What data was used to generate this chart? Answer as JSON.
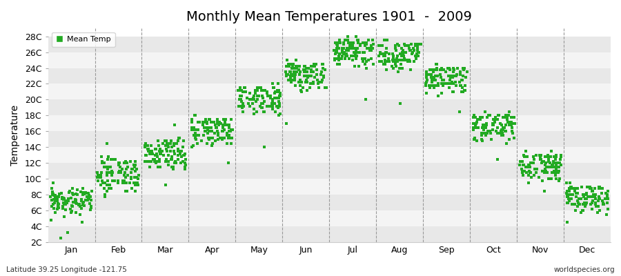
{
  "title": "Monthly Mean Temperatures 1901  -  2009",
  "ylabel": "Temperature",
  "subtitle": "Latitude 39.25 Longitude -121.75",
  "watermark": "worldspecies.org",
  "legend_label": "Mean Temp",
  "dot_color": "#22aa22",
  "dot_marker": "s",
  "dot_size": 5,
  "background_color": "#ffffff",
  "plot_bg_color": "#f0f0f0",
  "band_colors": [
    "#e8e8e8",
    "#f4f4f4"
  ],
  "ytick_labels": [
    "2C",
    "4C",
    "6C",
    "8C",
    "10C",
    "12C",
    "14C",
    "16C",
    "18C",
    "20C",
    "22C",
    "24C",
    "26C",
    "28C"
  ],
  "ytick_values": [
    2,
    4,
    6,
    8,
    10,
    12,
    14,
    16,
    18,
    20,
    22,
    24,
    26,
    28
  ],
  "ylim": [
    2,
    28
  ],
  "months": [
    "Jan",
    "Feb",
    "Mar",
    "Apr",
    "May",
    "Jun",
    "Jul",
    "Aug",
    "Sep",
    "Oct",
    "Nov",
    "Dec"
  ],
  "month_centers": [
    0.5,
    1.5,
    2.5,
    3.5,
    4.5,
    5.5,
    6.5,
    7.5,
    8.5,
    9.5,
    10.5,
    11.5
  ],
  "month_boundaries": [
    1,
    2,
    3,
    4,
    5,
    6,
    7,
    8,
    9,
    10,
    11
  ],
  "xlim": [
    0,
    12
  ],
  "mean_temps_by_month": {
    "0": [
      7.1,
      6.1,
      6.3,
      5.8,
      7.5,
      7.2,
      6.8,
      7.8,
      7.0,
      5.5,
      4.8,
      6.5,
      7.3,
      8.1,
      7.8,
      6.9,
      7.6,
      8.2,
      7.5,
      6.3,
      7.0,
      7.8,
      6.5,
      7.2,
      8.5,
      7.1,
      6.8,
      5.9,
      7.4,
      8.0,
      7.3,
      6.2,
      9.5,
      7.8,
      6.4,
      8.1,
      7.5,
      7.0,
      6.8,
      8.3,
      7.2,
      5.8,
      6.5,
      7.9,
      8.2,
      6.7,
      7.4,
      8.8,
      7.1,
      6.5,
      7.3,
      8.0,
      6.9,
      7.5,
      8.1,
      7.6,
      6.3,
      7.8,
      8.4,
      5.2,
      7.0,
      7.7,
      8.3,
      6.8,
      7.5,
      8.0,
      7.2,
      6.6,
      7.9,
      8.5,
      7.1,
      6.4,
      7.8,
      8.3,
      6.5,
      7.2,
      8.8,
      7.4,
      6.1,
      7.6,
      8.2,
      6.9,
      7.5,
      8.1,
      7.0,
      6.8,
      7.4,
      8.6,
      7.3,
      6.2,
      7.9,
      8.4,
      6.7,
      7.1,
      8.3,
      7.6,
      6.5,
      7.2,
      8.8,
      5.8,
      7.3,
      8.0,
      7.5,
      6.6,
      8.2,
      2.5,
      3.2,
      4.5
    ],
    "1": [
      8.5,
      10.5,
      9.2,
      8.8,
      11.2,
      10.0,
      9.5,
      11.8,
      10.2,
      8.0,
      8.5,
      11.5,
      10.8,
      12.2,
      11.5,
      9.8,
      10.5,
      12.5,
      11.2,
      9.5,
      10.2,
      11.8,
      9.8,
      10.8,
      12.2,
      10.5,
      9.5,
      8.8,
      11.0,
      12.0,
      10.8,
      9.2,
      10.0,
      11.5,
      9.5,
      11.5,
      10.8,
      10.2,
      9.8,
      12.0,
      10.5,
      8.8,
      9.5,
      11.2,
      12.0,
      9.8,
      10.5,
      12.5,
      10.2,
      9.5,
      10.8,
      11.5,
      9.8,
      10.5,
      12.0,
      11.0,
      9.2,
      11.2,
      12.5,
      7.8,
      10.2,
      11.2,
      12.2,
      9.8,
      10.8,
      11.5,
      10.5,
      9.5,
      11.2,
      12.5,
      10.2,
      9.5,
      11.0,
      12.0,
      9.5,
      10.2,
      12.8,
      10.8,
      8.8,
      11.0,
      12.0,
      9.8,
      10.8,
      11.8,
      10.2,
      9.8,
      10.8,
      12.5,
      10.5,
      9.2,
      11.5,
      12.2,
      9.8,
      10.2,
      12.0,
      11.0,
      9.5,
      10.5,
      12.8,
      8.5,
      10.8,
      11.5,
      10.8,
      9.5,
      12.0,
      14.5,
      8.5,
      9.2
    ],
    "2": [
      11.5,
      12.0,
      12.5,
      13.2,
      12.8,
      11.8,
      13.5,
      12.2,
      13.8,
      12.5,
      11.2,
      13.2,
      12.8,
      14.5,
      13.5,
      12.2,
      13.0,
      14.8,
      13.2,
      12.0,
      13.0,
      14.2,
      12.5,
      13.5,
      14.8,
      13.0,
      12.2,
      11.5,
      14.0,
      14.8,
      13.5,
      12.0,
      11.5,
      13.5,
      12.2,
      13.8,
      13.2,
      12.8,
      12.2,
      14.2,
      13.0,
      11.5,
      12.2,
      13.8,
      14.5,
      12.5,
      13.2,
      14.8,
      12.8,
      12.2,
      13.5,
      14.2,
      12.5,
      13.2,
      14.8,
      13.8,
      12.0,
      14.0,
      14.8,
      9.2,
      13.0,
      14.0,
      14.5,
      12.5,
      13.5,
      14.2,
      13.2,
      12.2,
      14.0,
      14.5,
      13.0,
      12.2,
      13.8,
      14.5,
      12.2,
      13.0,
      15.2,
      13.5,
      11.5,
      13.8,
      14.5,
      12.5,
      13.5,
      14.2,
      13.0,
      12.5,
      13.5,
      14.8,
      13.2,
      11.8,
      14.2,
      14.8,
      12.5,
      13.0,
      14.5,
      13.8,
      12.2,
      13.2,
      15.2,
      11.2,
      13.5,
      14.2,
      13.5,
      12.2,
      14.5,
      16.8,
      11.5,
      12.0
    ],
    "3": [
      14.5,
      15.0,
      15.8,
      16.5,
      16.0,
      14.8,
      16.5,
      15.2,
      16.5,
      15.5,
      14.2,
      16.2,
      15.8,
      17.0,
      16.5,
      15.2,
      16.0,
      17.2,
      16.2,
      15.0,
      15.8,
      17.0,
      15.5,
      16.5,
      17.2,
      16.0,
      15.2,
      14.5,
      16.8,
      17.2,
      16.5,
      15.0,
      14.0,
      16.5,
      15.2,
      16.8,
      16.2,
      15.8,
      15.2,
      17.2,
      16.0,
      14.5,
      15.2,
      16.8,
      17.2,
      15.5,
      16.2,
      17.5,
      15.8,
      15.2,
      16.5,
      17.2,
      15.5,
      16.2,
      17.5,
      16.8,
      15.0,
      17.0,
      17.5,
      12.0,
      16.0,
      17.0,
      17.2,
      15.5,
      16.5,
      17.2,
      16.2,
      15.2,
      17.0,
      17.5,
      16.0,
      15.2,
      16.8,
      17.5,
      15.2,
      16.0,
      18.0,
      16.5,
      14.5,
      16.8,
      17.2,
      15.5,
      16.5,
      17.2,
      16.0,
      15.5,
      16.5,
      17.5,
      16.2,
      14.8,
      17.2,
      17.5,
      15.5,
      16.0,
      17.2,
      16.8,
      15.2,
      16.2,
      18.0,
      14.2,
      16.5,
      17.2,
      16.5,
      15.2,
      17.5,
      15.5,
      14.5,
      15.2
    ],
    "4": [
      18.5,
      19.0,
      19.8,
      20.5,
      20.0,
      18.8,
      20.5,
      19.2,
      20.5,
      19.5,
      18.2,
      20.2,
      19.8,
      21.0,
      20.5,
      19.2,
      20.0,
      21.2,
      20.2,
      19.0,
      19.8,
      21.0,
      19.5,
      20.5,
      21.2,
      20.0,
      19.2,
      18.5,
      21.0,
      21.2,
      20.5,
      19.0,
      18.0,
      20.5,
      19.2,
      20.8,
      20.2,
      19.8,
      19.2,
      21.2,
      20.0,
      18.5,
      19.2,
      20.8,
      21.2,
      19.5,
      20.2,
      21.5,
      19.8,
      19.2,
      20.5,
      21.2,
      19.5,
      20.2,
      21.5,
      20.8,
      19.0,
      21.0,
      21.5,
      14.0,
      20.0,
      21.0,
      21.2,
      19.5,
      20.5,
      21.2,
      20.2,
      19.2,
      21.0,
      21.5,
      20.0,
      19.2,
      20.8,
      21.5,
      19.2,
      20.0,
      22.0,
      20.5,
      18.5,
      20.8,
      21.2,
      19.5,
      20.5,
      21.2,
      20.0,
      19.5,
      20.5,
      21.5,
      20.2,
      18.8,
      21.2,
      21.5,
      19.5,
      20.0,
      21.2,
      20.8,
      19.2,
      20.2,
      22.0,
      18.2,
      20.5,
      21.2,
      20.5,
      19.2,
      21.5,
      19.5,
      18.5,
      19.2
    ],
    "5": [
      21.5,
      22.0,
      22.8,
      23.5,
      23.0,
      21.8,
      23.5,
      22.2,
      23.5,
      22.5,
      21.2,
      23.2,
      22.8,
      24.0,
      23.5,
      22.2,
      23.0,
      24.2,
      23.2,
      22.0,
      22.8,
      24.0,
      22.5,
      23.5,
      24.2,
      23.0,
      22.2,
      21.5,
      24.0,
      24.2,
      23.5,
      22.0,
      21.0,
      23.5,
      22.2,
      23.8,
      23.2,
      22.8,
      22.2,
      24.2,
      23.0,
      21.5,
      22.2,
      23.8,
      24.2,
      22.5,
      23.2,
      24.5,
      22.8,
      22.2,
      23.5,
      24.2,
      22.5,
      23.2,
      24.5,
      23.8,
      22.0,
      24.0,
      24.5,
      17.0,
      23.0,
      24.0,
      24.2,
      22.5,
      23.5,
      24.2,
      23.2,
      22.2,
      24.0,
      24.5,
      23.0,
      22.2,
      23.8,
      24.5,
      22.2,
      23.0,
      25.0,
      23.5,
      21.5,
      23.8,
      24.2,
      22.5,
      23.5,
      24.2,
      23.0,
      22.5,
      23.5,
      24.5,
      23.2,
      21.8,
      24.2,
      24.5,
      22.5,
      23.0,
      24.2,
      23.8,
      22.2,
      23.2,
      25.0,
      21.2,
      23.5,
      24.2,
      23.5,
      22.2,
      24.5,
      22.5,
      21.5,
      22.2
    ],
    "6": [
      24.5,
      25.0,
      25.8,
      26.5,
      26.0,
      24.8,
      26.5,
      25.2,
      26.5,
      25.5,
      24.2,
      26.2,
      25.8,
      27.0,
      26.5,
      25.2,
      26.0,
      27.2,
      26.2,
      25.0,
      25.8,
      27.0,
      25.5,
      26.5,
      27.2,
      26.0,
      25.2,
      24.5,
      27.0,
      27.2,
      26.5,
      25.0,
      24.0,
      26.5,
      25.2,
      26.8,
      26.2,
      25.8,
      25.2,
      27.2,
      26.0,
      24.5,
      25.2,
      26.8,
      27.2,
      25.5,
      26.2,
      27.5,
      25.8,
      25.2,
      26.5,
      27.2,
      25.5,
      26.2,
      27.5,
      26.8,
      25.0,
      27.0,
      27.5,
      20.0,
      26.0,
      27.0,
      27.2,
      25.5,
      26.5,
      27.2,
      26.2,
      25.2,
      27.0,
      27.5,
      26.0,
      25.2,
      26.8,
      27.5,
      25.2,
      26.0,
      28.0,
      26.5,
      24.5,
      26.8,
      27.2,
      25.5,
      26.5,
      27.2,
      26.0,
      25.5,
      26.5,
      27.5,
      26.2,
      24.8,
      27.2,
      27.5,
      25.5,
      26.0,
      27.2,
      26.8,
      25.2,
      26.2,
      28.0,
      24.2,
      26.5,
      27.2,
      26.5,
      25.2,
      27.5,
      25.5,
      24.5,
      25.2
    ],
    "7": [
      25.0,
      24.5,
      25.2,
      25.8,
      25.5,
      24.2,
      25.8,
      24.8,
      25.8,
      25.0,
      23.8,
      25.5,
      25.2,
      26.5,
      25.8,
      24.8,
      25.5,
      26.8,
      25.8,
      24.5,
      25.2,
      26.5,
      25.0,
      26.0,
      26.8,
      25.5,
      24.8,
      24.0,
      26.5,
      26.8,
      26.0,
      24.5,
      23.5,
      26.0,
      24.8,
      26.2,
      25.8,
      25.2,
      24.8,
      26.8,
      25.5,
      24.0,
      24.8,
      26.2,
      26.8,
      25.0,
      25.8,
      27.0,
      25.2,
      24.8,
      26.0,
      26.8,
      25.0,
      25.8,
      27.0,
      26.2,
      24.5,
      26.5,
      27.0,
      19.5,
      25.5,
      26.5,
      26.8,
      25.0,
      26.0,
      26.8,
      25.8,
      24.8,
      26.5,
      27.0,
      25.5,
      24.8,
      26.2,
      27.0,
      24.8,
      25.5,
      27.5,
      26.0,
      24.0,
      26.2,
      26.8,
      25.0,
      26.0,
      26.8,
      25.5,
      25.0,
      26.0,
      27.0,
      25.8,
      24.2,
      26.8,
      27.0,
      25.0,
      25.5,
      26.8,
      26.2,
      24.8,
      25.8,
      27.5,
      23.8,
      26.0,
      26.8,
      26.0,
      24.8,
      27.0,
      25.0,
      24.0,
      24.8
    ],
    "8": [
      22.5,
      21.5,
      22.2,
      22.8,
      22.5,
      21.2,
      22.8,
      21.8,
      22.8,
      22.0,
      20.8,
      22.5,
      22.2,
      23.5,
      22.8,
      21.8,
      22.5,
      23.8,
      22.8,
      21.5,
      22.2,
      23.5,
      22.0,
      23.0,
      23.8,
      22.5,
      21.8,
      21.0,
      23.5,
      23.8,
      23.0,
      21.5,
      20.5,
      23.0,
      21.8,
      23.2,
      22.8,
      22.2,
      21.8,
      23.8,
      22.5,
      21.0,
      21.8,
      23.2,
      23.8,
      22.0,
      22.8,
      24.0,
      22.2,
      21.8,
      23.0,
      23.8,
      22.0,
      22.8,
      24.0,
      23.2,
      21.5,
      23.5,
      24.0,
      18.5,
      22.5,
      23.5,
      23.8,
      22.0,
      23.0,
      23.8,
      22.8,
      21.8,
      23.5,
      24.0,
      22.5,
      21.8,
      23.2,
      24.0,
      21.8,
      22.5,
      24.5,
      23.0,
      21.0,
      23.2,
      23.8,
      22.0,
      23.0,
      23.8,
      22.5,
      22.0,
      23.0,
      24.0,
      22.8,
      21.2,
      23.8,
      24.0,
      22.0,
      22.5,
      23.8,
      23.2,
      21.8,
      22.8,
      24.5,
      20.8,
      23.0,
      23.8,
      23.0,
      21.8,
      24.0,
      22.0,
      21.0,
      21.8
    ],
    "9": [
      16.5,
      15.5,
      16.2,
      16.8,
      16.5,
      15.2,
      16.8,
      15.8,
      16.8,
      16.0,
      14.8,
      16.5,
      16.2,
      17.5,
      16.8,
      15.8,
      16.5,
      17.8,
      16.8,
      15.5,
      16.2,
      17.5,
      16.0,
      17.0,
      17.8,
      16.5,
      15.8,
      15.0,
      17.5,
      17.8,
      17.0,
      15.5,
      14.5,
      17.0,
      15.8,
      17.2,
      16.8,
      16.2,
      15.8,
      17.8,
      16.5,
      15.0,
      15.8,
      17.2,
      17.8,
      16.0,
      16.8,
      18.0,
      16.2,
      15.8,
      17.0,
      17.8,
      16.0,
      16.8,
      18.0,
      17.2,
      15.5,
      17.5,
      18.0,
      12.5,
      16.5,
      17.5,
      17.8,
      16.0,
      17.0,
      17.8,
      16.8,
      15.8,
      17.5,
      18.0,
      16.5,
      15.8,
      17.2,
      18.0,
      15.8,
      16.5,
      18.5,
      17.0,
      15.0,
      17.2,
      17.8,
      16.0,
      17.0,
      17.8,
      16.5,
      16.0,
      17.0,
      18.0,
      16.8,
      15.2,
      17.8,
      18.0,
      16.0,
      16.5,
      17.8,
      17.2,
      15.8,
      16.8,
      18.5,
      14.8,
      17.0,
      17.8,
      17.0,
      15.8,
      18.0,
      16.0,
      15.0,
      15.8
    ],
    "10": [
      11.5,
      10.5,
      11.2,
      11.8,
      11.5,
      10.2,
      11.8,
      10.8,
      11.8,
      11.0,
      9.8,
      11.5,
      11.2,
      12.5,
      11.8,
      10.8,
      11.5,
      12.8,
      11.8,
      10.5,
      11.2,
      12.5,
      11.0,
      12.0,
      12.8,
      11.5,
      10.8,
      10.0,
      12.5,
      12.8,
      12.0,
      10.5,
      9.5,
      12.0,
      10.8,
      12.2,
      11.8,
      11.2,
      10.8,
      12.8,
      11.5,
      10.0,
      10.8,
      12.2,
      12.8,
      11.0,
      11.8,
      13.0,
      11.2,
      10.8,
      12.0,
      12.8,
      11.0,
      11.8,
      13.0,
      12.2,
      10.5,
      12.5,
      13.0,
      8.5,
      11.5,
      12.5,
      12.8,
      11.0,
      12.0,
      12.8,
      11.8,
      10.8,
      12.5,
      13.0,
      11.5,
      10.8,
      12.2,
      13.0,
      10.8,
      11.5,
      13.5,
      12.0,
      10.0,
      12.2,
      12.8,
      11.0,
      12.0,
      12.8,
      11.5,
      11.0,
      12.0,
      13.0,
      11.8,
      10.2,
      12.8,
      13.0,
      11.0,
      11.5,
      12.8,
      12.2,
      10.8,
      11.8,
      13.5,
      9.8,
      12.0,
      12.8,
      12.0,
      10.8,
      13.0,
      11.0,
      10.0,
      10.8
    ],
    "11": [
      7.5,
      6.5,
      7.2,
      7.8,
      7.5,
      6.2,
      7.8,
      6.8,
      7.8,
      7.0,
      5.8,
      7.5,
      7.2,
      8.5,
      7.8,
      6.8,
      7.5,
      8.8,
      7.8,
      6.5,
      7.2,
      8.5,
      7.0,
      8.0,
      8.8,
      7.5,
      6.8,
      6.0,
      8.5,
      8.8,
      8.0,
      6.5,
      5.5,
      8.0,
      6.8,
      8.2,
      7.8,
      7.2,
      6.8,
      8.8,
      7.5,
      6.0,
      6.8,
      8.2,
      8.8,
      7.0,
      7.8,
      9.0,
      7.2,
      6.8,
      8.0,
      8.8,
      7.0,
      7.8,
      9.0,
      8.2,
      6.5,
      8.5,
      9.0,
      4.5,
      7.5,
      8.5,
      8.8,
      7.0,
      8.0,
      8.8,
      7.8,
      6.8,
      8.5,
      9.0,
      7.5,
      6.8,
      8.2,
      9.0,
      6.8,
      7.5,
      9.5,
      8.0,
      6.0,
      8.2,
      8.8,
      7.0,
      8.0,
      8.8,
      7.5,
      7.0,
      8.0,
      9.0,
      7.8,
      6.2,
      8.8,
      9.0,
      7.0,
      7.5,
      8.8,
      8.2,
      6.8,
      7.8,
      9.5,
      5.8,
      8.0,
      8.8,
      8.0,
      6.8,
      9.0,
      7.0,
      6.0,
      6.8
    ]
  }
}
